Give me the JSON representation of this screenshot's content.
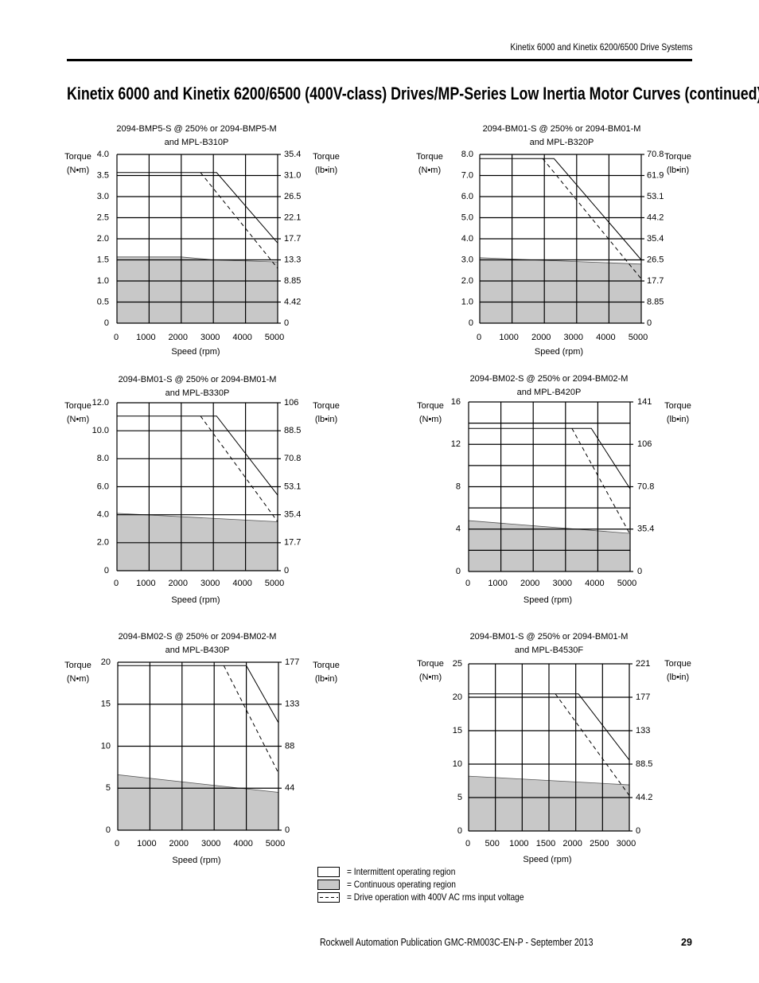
{
  "header": {
    "running_title": "Kinetix 6000 and Kinetix 6200/6500 Drive Systems"
  },
  "page_title": "Kinetix 6000 and Kinetix 6200/6500 (400V-class) Drives/MP-Series Low Inertia Motor Curves (continued)",
  "footer": {
    "publication": "Rockwell Automation Publication GMC-RM003C-EN-P - September 2013",
    "page_number": "29"
  },
  "colors": {
    "continuous_fill": "#c8c8c8",
    "intermittent_line": "#000000",
    "grid": "#000000"
  },
  "legend": {
    "items": [
      {
        "style": "white-box",
        "label": "= Intermittent operating region"
      },
      {
        "style": "gray-box",
        "label": "= Continuous operating region"
      },
      {
        "style": "dashed-line",
        "label": "= Drive operation with 400V AC rms input voltage"
      }
    ]
  },
  "chart_data": [
    {
      "type": "area",
      "title": [
        "2094-BMP5-S @ 250% or 2094-BMP5-M",
        "and MPL-B310P"
      ],
      "xlabel": "Speed (rpm)",
      "ylabel_left": [
        "Torque",
        "(N•m)"
      ],
      "ylabel_right": [
        "Torque",
        "(lb•in)"
      ],
      "xlim": [
        0,
        5000
      ],
      "ylim": [
        0,
        4.0
      ],
      "x_ticks": [
        "0",
        "1000",
        "2000",
        "3000",
        "4000",
        "5000"
      ],
      "y_ticks_left": [
        "0",
        "0.5",
        "1.0",
        "1.5",
        "2.0",
        "2.5",
        "3.0",
        "3.5",
        "4.0"
      ],
      "y_ticks_right": [
        "0",
        "4.42",
        "8.85",
        "13.3",
        "17.7",
        "22.1",
        "26.5",
        "31.0",
        "35.4"
      ],
      "grid": true,
      "x_grid_step": 1000,
      "y_grid_step": 0.5,
      "intermittent": [
        [
          0,
          3.57
        ],
        [
          3100,
          3.57
        ],
        [
          5000,
          1.9
        ]
      ],
      "dashed_400v": [
        [
          2600,
          3.57
        ],
        [
          5000,
          1.3
        ]
      ],
      "continuous": [
        [
          0,
          1.57
        ],
        [
          2000,
          1.57
        ],
        [
          3000,
          1.5
        ],
        [
          5000,
          1.45
        ]
      ]
    },
    {
      "type": "area",
      "title": [
        "2094-BM01-S @ 250% or 2094-BM01-M",
        "and MPL-B320P"
      ],
      "xlabel": "Speed (rpm)",
      "ylabel_left": [
        "Torque",
        "(N•m)"
      ],
      "ylabel_right": [
        "Torque",
        "(lb•in)"
      ],
      "xlim": [
        0,
        5000
      ],
      "ylim": [
        0,
        8.0
      ],
      "x_ticks": [
        "0",
        "1000",
        "2000",
        "3000",
        "4000",
        "5000"
      ],
      "y_ticks_left": [
        "0",
        "1.0",
        "2.0",
        "3.0",
        "4.0",
        "5.0",
        "6.0",
        "7.0",
        "8.0"
      ],
      "y_ticks_right": [
        "0",
        "8.85",
        "17.7",
        "26.5",
        "35.4",
        "44.2",
        "53.1",
        "61.9",
        "70.8"
      ],
      "grid": true,
      "x_grid_step": 1000,
      "y_grid_step": 1.0,
      "intermittent": [
        [
          0,
          7.8
        ],
        [
          2300,
          7.8
        ],
        [
          5000,
          3.0
        ]
      ],
      "dashed_400v": [
        [
          1950,
          7.8
        ],
        [
          5000,
          2.1
        ]
      ],
      "continuous": [
        [
          0,
          3.1
        ],
        [
          5000,
          2.8
        ]
      ]
    },
    {
      "type": "area",
      "title": [
        "2094-BM01-S @ 250% or 2094-BM01-M",
        "and MPL-B330P"
      ],
      "xlabel": "Speed (rpm)",
      "ylabel_left": [
        "Torque",
        "(N•m)"
      ],
      "ylabel_right": [
        "Torque",
        "(lb•in)"
      ],
      "xlim": [
        0,
        5000
      ],
      "ylim": [
        0,
        12.0
      ],
      "x_ticks": [
        "0",
        "1000",
        "2000",
        "3000",
        "4000",
        "5000"
      ],
      "y_ticks_left": [
        "0",
        "2.0",
        "4.0",
        "6.0",
        "8.0",
        "10.0",
        "12.0"
      ],
      "y_ticks_right": [
        "0",
        "17.7",
        "35.4",
        "53.1",
        "70.8",
        "88.5",
        "106"
      ],
      "grid": true,
      "x_grid_step": 1000,
      "y_grid_step": 2.0,
      "intermittent": [
        [
          0,
          11.05
        ],
        [
          3100,
          11.05
        ],
        [
          5000,
          5.4
        ]
      ],
      "dashed_400v": [
        [
          2600,
          11.05
        ],
        [
          5000,
          3.5
        ]
      ],
      "continuous": [
        [
          0,
          4.1
        ],
        [
          5000,
          3.5
        ]
      ]
    },
    {
      "type": "area",
      "title": [
        "2094-BM02-S @ 250% or 2094-BM02-M",
        "and MPL-B420P"
      ],
      "xlabel": "Speed (rpm)",
      "ylabel_left": [
        "Torque",
        "(N•m)"
      ],
      "ylabel_right": [
        "Torque",
        "(lb•in)"
      ],
      "xlim": [
        0,
        5000
      ],
      "ylim": [
        0,
        16
      ],
      "x_ticks": [
        "0",
        "1000",
        "2000",
        "3000",
        "4000",
        "5000"
      ],
      "y_ticks_left": [
        "0",
        "4",
        "8",
        "12",
        "16"
      ],
      "y_ticks_right": [
        "0",
        "35.4",
        "70.8",
        "106",
        "141"
      ],
      "grid": true,
      "x_grid_step": 1000,
      "y_grid_step": 2,
      "intermittent": [
        [
          0,
          13.5
        ],
        [
          3800,
          13.5
        ],
        [
          5000,
          7.8
        ]
      ],
      "dashed_400v": [
        [
          3200,
          13.5
        ],
        [
          5000,
          3.5
        ]
      ],
      "continuous": [
        [
          0,
          4.8
        ],
        [
          5000,
          3.6
        ]
      ]
    },
    {
      "type": "area",
      "title": [
        "2094-BM02-S @ 250% or 2094-BM02-M",
        "and MPL-B430P"
      ],
      "xlabel": "Speed (rpm)",
      "ylabel_left": [
        "Torque",
        "(N•m)"
      ],
      "ylabel_right": [
        "Torque",
        "(lb•in)"
      ],
      "xlim": [
        0,
        5000
      ],
      "ylim": [
        0,
        20
      ],
      "x_ticks": [
        "0",
        "1000",
        "2000",
        "3000",
        "4000",
        "5000"
      ],
      "y_ticks_left": [
        "0",
        "5",
        "10",
        "15",
        "20"
      ],
      "y_ticks_right": [
        "0",
        "44",
        "88",
        "133",
        "177"
      ],
      "grid": true,
      "x_grid_step": 1000,
      "y_grid_step": 5,
      "intermittent": [
        [
          0,
          19.6
        ],
        [
          4000,
          19.6
        ],
        [
          5000,
          12.8
        ]
      ],
      "dashed_400v": [
        [
          3300,
          19.6
        ],
        [
          5000,
          6.8
        ]
      ],
      "continuous": [
        [
          0,
          6.6
        ],
        [
          5000,
          4.5
        ]
      ]
    },
    {
      "type": "area",
      "title": [
        "2094-BM01-S @ 250% or 2094-BM01-M",
        "and MPL-B4530F"
      ],
      "xlabel": "Speed (rpm)",
      "ylabel_left": [
        "Torque",
        "(N•m)"
      ],
      "ylabel_right": [
        "Torque",
        "(lb•in)"
      ],
      "xlim": [
        0,
        3000
      ],
      "ylim": [
        0,
        25
      ],
      "x_ticks": [
        "0",
        "500",
        "1000",
        "1500",
        "2000",
        "2500",
        "3000"
      ],
      "y_ticks_left": [
        "0",
        "5",
        "10",
        "15",
        "20",
        "25"
      ],
      "y_ticks_right": [
        "0",
        "44.2",
        "88.5",
        "133",
        "177",
        "221"
      ],
      "grid": true,
      "x_grid_step": 500,
      "y_grid_step": 5,
      "intermittent": [
        [
          0,
          20.5
        ],
        [
          2050,
          20.5
        ],
        [
          3000,
          10.6
        ]
      ],
      "dashed_400v": [
        [
          1620,
          20.5
        ],
        [
          3000,
          5.3
        ]
      ],
      "continuous": [
        [
          0,
          8.2
        ],
        [
          3000,
          6.9
        ]
      ]
    }
  ]
}
